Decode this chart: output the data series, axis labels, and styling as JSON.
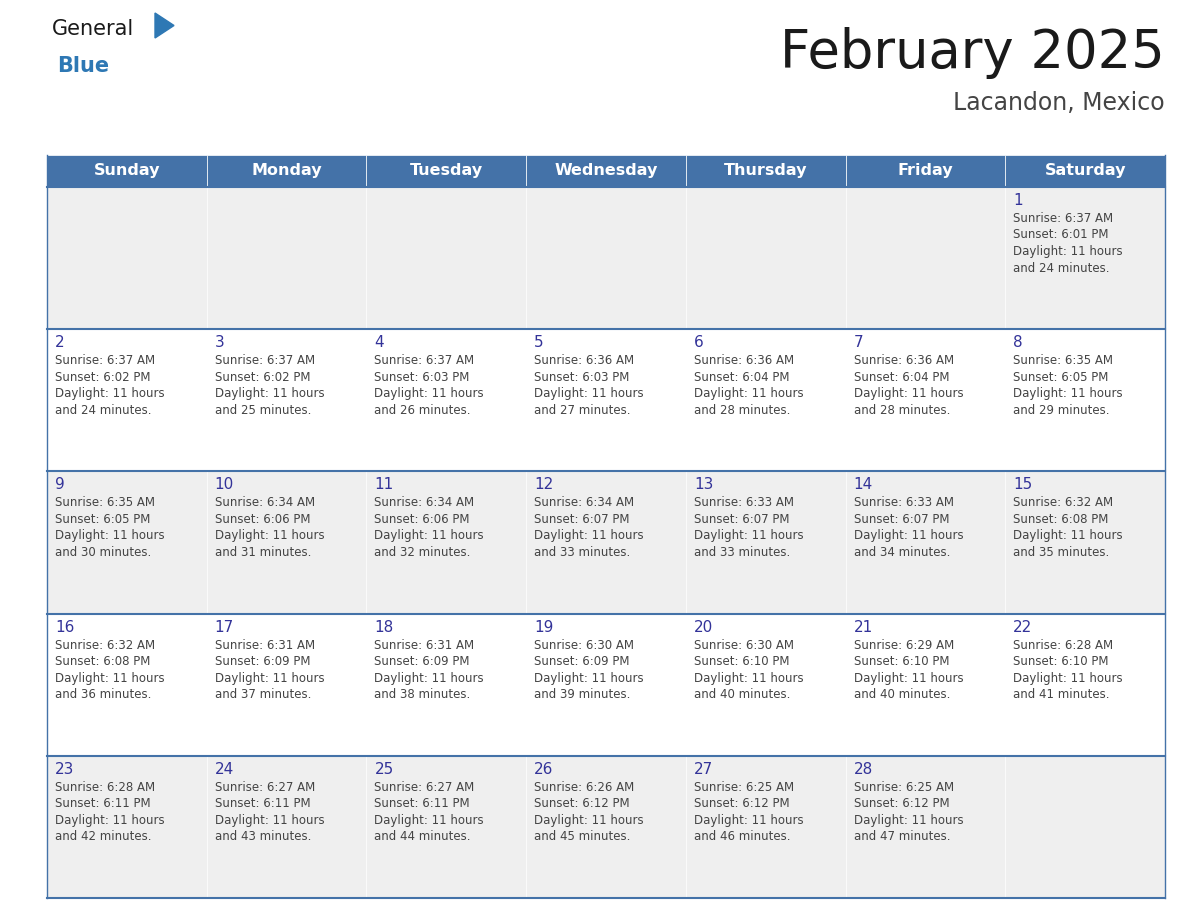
{
  "title": "February 2025",
  "subtitle": "Lacandon, Mexico",
  "days_of_week": [
    "Sunday",
    "Monday",
    "Tuesday",
    "Wednesday",
    "Thursday",
    "Friday",
    "Saturday"
  ],
  "header_bg": "#4472a8",
  "header_text": "#ffffff",
  "row_bg_odd": "#efefef",
  "row_bg_even": "#ffffff",
  "cell_text_color": "#444444",
  "day_num_color": "#333399",
  "border_color": "#4472a8",
  "title_color": "#1a1a1a",
  "subtitle_color": "#444444",
  "logo_general_color": "#1a1a1a",
  "logo_blue_color": "#2e78b4",
  "calendar_data": [
    [
      null,
      null,
      null,
      null,
      null,
      null,
      {
        "day": 1,
        "sunrise": "6:37 AM",
        "sunset": "6:01 PM",
        "daylight": "11 hours and 24 minutes."
      }
    ],
    [
      {
        "day": 2,
        "sunrise": "6:37 AM",
        "sunset": "6:02 PM",
        "daylight": "11 hours and 24 minutes."
      },
      {
        "day": 3,
        "sunrise": "6:37 AM",
        "sunset": "6:02 PM",
        "daylight": "11 hours and 25 minutes."
      },
      {
        "day": 4,
        "sunrise": "6:37 AM",
        "sunset": "6:03 PM",
        "daylight": "11 hours and 26 minutes."
      },
      {
        "day": 5,
        "sunrise": "6:36 AM",
        "sunset": "6:03 PM",
        "daylight": "11 hours and 27 minutes."
      },
      {
        "day": 6,
        "sunrise": "6:36 AM",
        "sunset": "6:04 PM",
        "daylight": "11 hours and 28 minutes."
      },
      {
        "day": 7,
        "sunrise": "6:36 AM",
        "sunset": "6:04 PM",
        "daylight": "11 hours and 28 minutes."
      },
      {
        "day": 8,
        "sunrise": "6:35 AM",
        "sunset": "6:05 PM",
        "daylight": "11 hours and 29 minutes."
      }
    ],
    [
      {
        "day": 9,
        "sunrise": "6:35 AM",
        "sunset": "6:05 PM",
        "daylight": "11 hours and 30 minutes."
      },
      {
        "day": 10,
        "sunrise": "6:34 AM",
        "sunset": "6:06 PM",
        "daylight": "11 hours and 31 minutes."
      },
      {
        "day": 11,
        "sunrise": "6:34 AM",
        "sunset": "6:06 PM",
        "daylight": "11 hours and 32 minutes."
      },
      {
        "day": 12,
        "sunrise": "6:34 AM",
        "sunset": "6:07 PM",
        "daylight": "11 hours and 33 minutes."
      },
      {
        "day": 13,
        "sunrise": "6:33 AM",
        "sunset": "6:07 PM",
        "daylight": "11 hours and 33 minutes."
      },
      {
        "day": 14,
        "sunrise": "6:33 AM",
        "sunset": "6:07 PM",
        "daylight": "11 hours and 34 minutes."
      },
      {
        "day": 15,
        "sunrise": "6:32 AM",
        "sunset": "6:08 PM",
        "daylight": "11 hours and 35 minutes."
      }
    ],
    [
      {
        "day": 16,
        "sunrise": "6:32 AM",
        "sunset": "6:08 PM",
        "daylight": "11 hours and 36 minutes."
      },
      {
        "day": 17,
        "sunrise": "6:31 AM",
        "sunset": "6:09 PM",
        "daylight": "11 hours and 37 minutes."
      },
      {
        "day": 18,
        "sunrise": "6:31 AM",
        "sunset": "6:09 PM",
        "daylight": "11 hours and 38 minutes."
      },
      {
        "day": 19,
        "sunrise": "6:30 AM",
        "sunset": "6:09 PM",
        "daylight": "11 hours and 39 minutes."
      },
      {
        "day": 20,
        "sunrise": "6:30 AM",
        "sunset": "6:10 PM",
        "daylight": "11 hours and 40 minutes."
      },
      {
        "day": 21,
        "sunrise": "6:29 AM",
        "sunset": "6:10 PM",
        "daylight": "11 hours and 40 minutes."
      },
      {
        "day": 22,
        "sunrise": "6:28 AM",
        "sunset": "6:10 PM",
        "daylight": "11 hours and 41 minutes."
      }
    ],
    [
      {
        "day": 23,
        "sunrise": "6:28 AM",
        "sunset": "6:11 PM",
        "daylight": "11 hours and 42 minutes."
      },
      {
        "day": 24,
        "sunrise": "6:27 AM",
        "sunset": "6:11 PM",
        "daylight": "11 hours and 43 minutes."
      },
      {
        "day": 25,
        "sunrise": "6:27 AM",
        "sunset": "6:11 PM",
        "daylight": "11 hours and 44 minutes."
      },
      {
        "day": 26,
        "sunrise": "6:26 AM",
        "sunset": "6:12 PM",
        "daylight": "11 hours and 45 minutes."
      },
      {
        "day": 27,
        "sunrise": "6:25 AM",
        "sunset": "6:12 PM",
        "daylight": "11 hours and 46 minutes."
      },
      {
        "day": 28,
        "sunrise": "6:25 AM",
        "sunset": "6:12 PM",
        "daylight": "11 hours and 47 minutes."
      },
      null
    ]
  ]
}
